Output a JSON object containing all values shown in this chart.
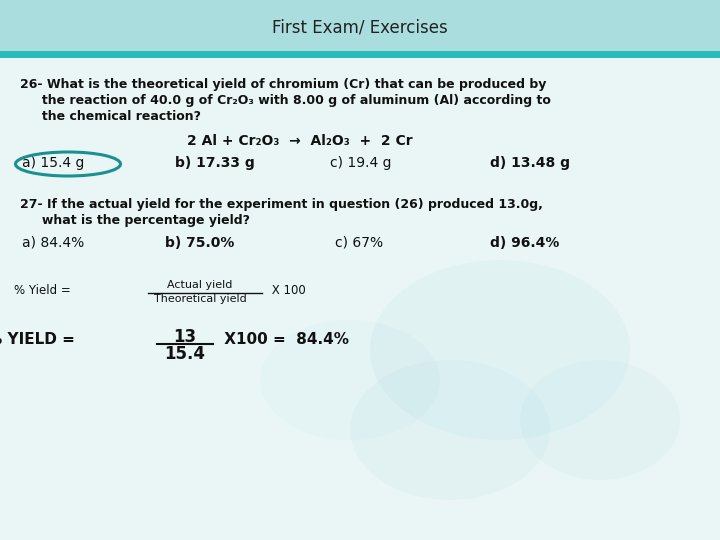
{
  "title": "First Exam/ Exercises",
  "header_bg": "#AADEDE",
  "header_stripe": "#2ABCBC",
  "bg_color": "#EAF6F6",
  "title_color": "#222222",
  "title_fontsize": 12,
  "q26_line1": "26- What is the theoretical yield of chromium (Cr) that can be produced by",
  "q26_line2": "     the reaction of 40.0 g of Cr₂O₃ with 8.00 g of aluminum (Al) according to",
  "q26_line3": "     the chemical reaction?",
  "reaction": "2 Al + Cr₂O₃  →  Al₂O₃  +  2 Cr",
  "q26_opts": [
    "a) 15.4 g",
    "b) 17.33 g",
    "c) 19.4 g",
    "d) 13.48 g"
  ],
  "q26_opt_bold": [
    false,
    true,
    false,
    true
  ],
  "q27_line1": "27- If the actual yield for the experiment in question (26) produced 13.0g,",
  "q27_line2": "     what is the percentage yield?",
  "q27_opts": [
    "a) 84.4%",
    "b) 75.0%",
    "c) 67%",
    "d) 96.4%"
  ],
  "q27_opt_bold": [
    false,
    true,
    false,
    true
  ],
  "f1_left": "% Yield = ",
  "f1_num": "Actual yield",
  "f1_den": "Theoretical yield",
  "f1_right": " X 100",
  "f2_left": "% YIELD = ",
  "f2_num": "13",
  "f2_den": "15.4",
  "f2_right": " X100 =  84.4%",
  "text_color": "#111111",
  "circle_color": "#1A9090"
}
